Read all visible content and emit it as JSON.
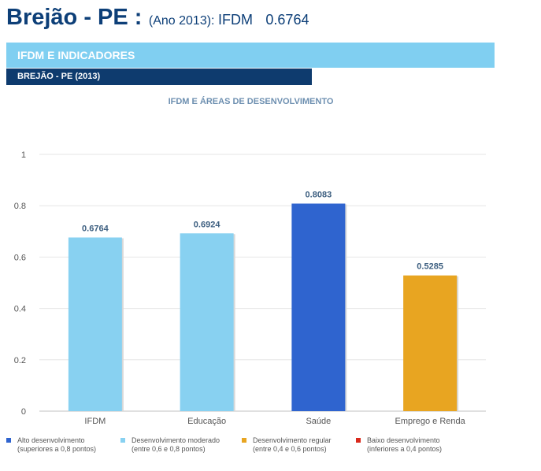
{
  "header": {
    "city": "Brejão - PE :",
    "year": "(Ano 2013):",
    "ifdm_label": "IFDM",
    "ifdm_value": "0.6764"
  },
  "section": {
    "title": "IFDM E INDICADORES",
    "subtitle": "BREJÃO - PE (2013)"
  },
  "colors": {
    "alto": "#2f64cf",
    "moderado": "#88d1f1",
    "regular": "#e8a521",
    "baixo": "#d9291c"
  },
  "legend": [
    {
      "line1": "Alto desenvolvimento",
      "line2": "(superiores a 0,8 pontos)",
      "color": "#2f64cf"
    },
    {
      "line1": "Desenvolvimento moderado",
      "line2": "(entre 0,6 e 0,8 pontos)",
      "color": "#88d1f1"
    },
    {
      "line1": "Desenvolvimento regular",
      "line2": "(entre 0,4 e 0,6 pontos)",
      "color": "#e8a521"
    },
    {
      "line1": "Baixo desenvolvimento",
      "line2": "(inferiores a 0,4 pontos)",
      "color": "#d9291c"
    }
  ],
  "chart_data": {
    "type": "bar",
    "title": "IFDM E ÁREAS DE DESENVOLVIMENTO",
    "categories": [
      "IFDM",
      "Educação",
      "Saúde",
      "Emprego e Renda"
    ],
    "values": [
      0.6764,
      0.6924,
      0.8083,
      0.5285
    ],
    "value_labels": [
      "0.6764",
      "0.6924",
      "0.8083",
      "0.5285"
    ],
    "bar_colors": [
      "#88d1f1",
      "#88d1f1",
      "#2f64cf",
      "#e8a521"
    ],
    "ylim": [
      0,
      1
    ],
    "yticks": [
      0,
      0.2,
      0.4,
      0.6,
      0.8,
      1
    ],
    "ytick_labels": [
      "0",
      "0.2",
      "0.4",
      "0.6",
      "0.8",
      "1"
    ],
    "grid": true,
    "legend_position": "bottom"
  }
}
